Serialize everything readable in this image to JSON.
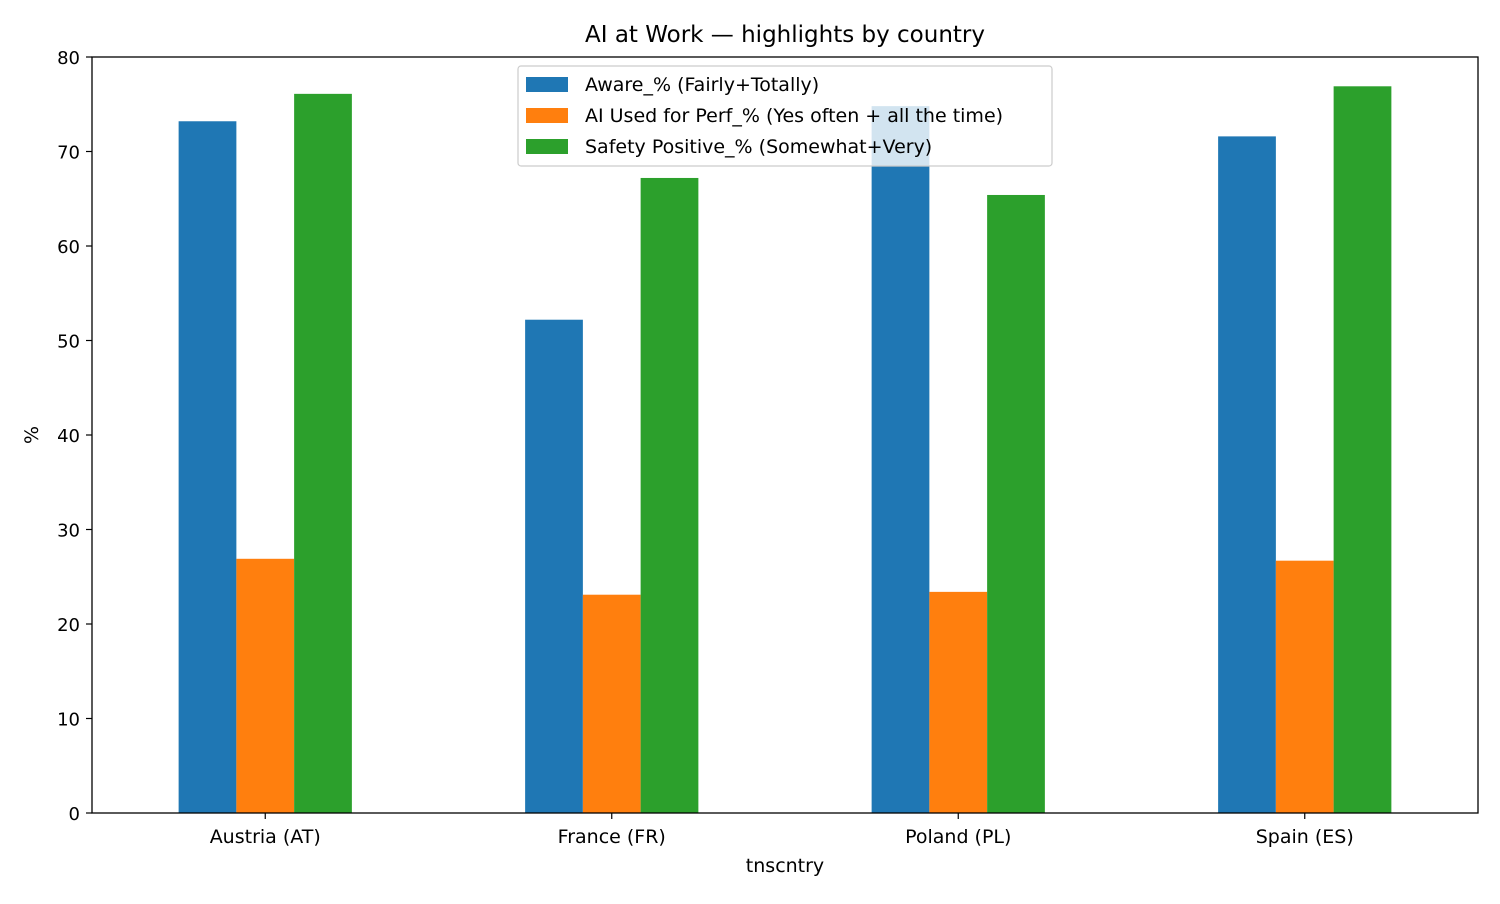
{
  "chart_data": {
    "type": "bar",
    "title": "AI at Work — highlights by country",
    "xlabel": "tnscntry",
    "ylabel": "%",
    "ylim": [
      0,
      80
    ],
    "yticks": [
      0,
      10,
      20,
      30,
      40,
      50,
      60,
      70,
      80
    ],
    "categories": [
      "Austria (AT)",
      "France (FR)",
      "Poland (PL)",
      "Spain (ES)"
    ],
    "series": [
      {
        "name": "Aware_% (Fairly+Totally)",
        "color": "#1f77b4",
        "values": [
          73.2,
          52.2,
          74.8,
          71.6
        ]
      },
      {
        "name": "AI Used for Perf_% (Yes often + all the time)",
        "color": "#ff7f0e",
        "values": [
          26.9,
          23.1,
          23.4,
          26.7
        ]
      },
      {
        "name": "Safety Positive_% (Somewhat+Very)",
        "color": "#2ca02c",
        "values": [
          76.1,
          67.2,
          65.4,
          76.9
        ]
      }
    ],
    "grid": false,
    "legend_position": "upper center"
  }
}
